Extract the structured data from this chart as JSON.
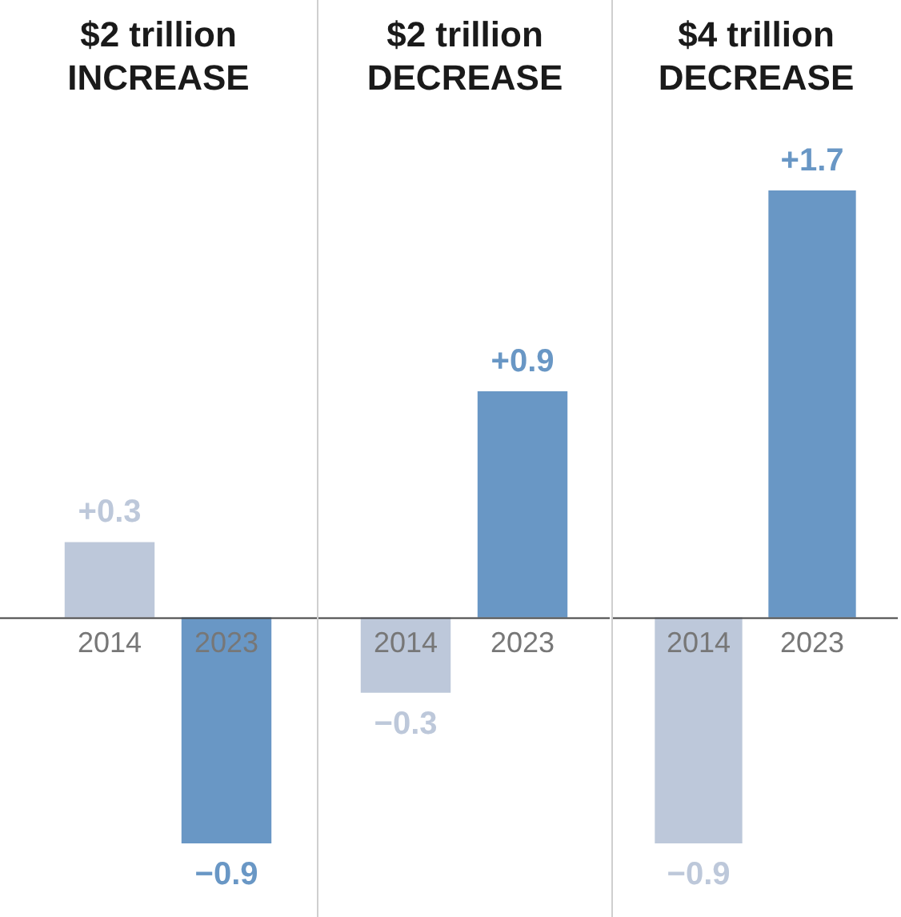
{
  "chart_data": [
    {
      "type": "bar",
      "title": "$2 trillion",
      "subtitle": "INCREASE",
      "categories": [
        "2014",
        "2023"
      ],
      "values": [
        0.3,
        -0.9
      ],
      "value_labels": [
        "+0.3",
        "−0.9"
      ],
      "colors": [
        "#bdc8da",
        "#6997c5"
      ]
    },
    {
      "type": "bar",
      "title": "$2 trillion",
      "subtitle": "DECREASE",
      "categories": [
        "2014",
        "2023"
      ],
      "values": [
        -0.3,
        0.9
      ],
      "value_labels": [
        "−0.3",
        "+0.9"
      ],
      "colors": [
        "#bdc8da",
        "#6997c5"
      ]
    },
    {
      "type": "bar",
      "title": "$4 trillion",
      "subtitle": "DECREASE",
      "categories": [
        "2014",
        "2023"
      ],
      "values": [
        -0.9,
        1.7
      ],
      "value_labels": [
        "−0.9",
        "+1.7"
      ],
      "colors": [
        "#bdc8da",
        "#6997c5"
      ]
    }
  ]
}
